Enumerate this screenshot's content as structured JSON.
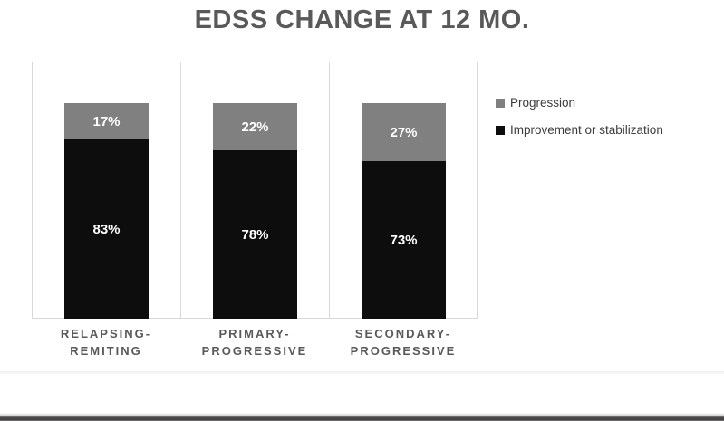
{
  "title": "EDSS CHANGE AT 12 MO.",
  "legend": {
    "position": "right",
    "items": [
      {
        "label": "Progression",
        "color": "#808080"
      },
      {
        "label": "Improvement or stabilization",
        "color": "#0d0d0d"
      }
    ]
  },
  "colors": {
    "progression": "#808080",
    "improvement_or_stabilization": "#0d0d0d",
    "title_text": "#595959",
    "axis_line": "#d9d9d9",
    "data_label_text": "#ffffff"
  },
  "chart_data": {
    "type": "bar",
    "stacked": true,
    "percent_stacked": true,
    "title": "EDSS CHANGE AT 12 MO.",
    "xlabel": "",
    "ylabel": "",
    "ylim": [
      0,
      100
    ],
    "unit": "%",
    "grid": "vertical-category-dividers",
    "legend_position": "right",
    "data_labels": true,
    "categories": [
      "RELAPSING-\nREMITING",
      "PRIMARY-\nPROGRESSIVE",
      "SECONDARY-\nPROGRESSIVE"
    ],
    "series": [
      {
        "name": "Improvement or stabilization",
        "color": "#0d0d0d",
        "values": [
          83,
          78,
          73
        ]
      },
      {
        "name": "Progression",
        "color": "#808080",
        "values": [
          17,
          22,
          27
        ]
      }
    ]
  }
}
